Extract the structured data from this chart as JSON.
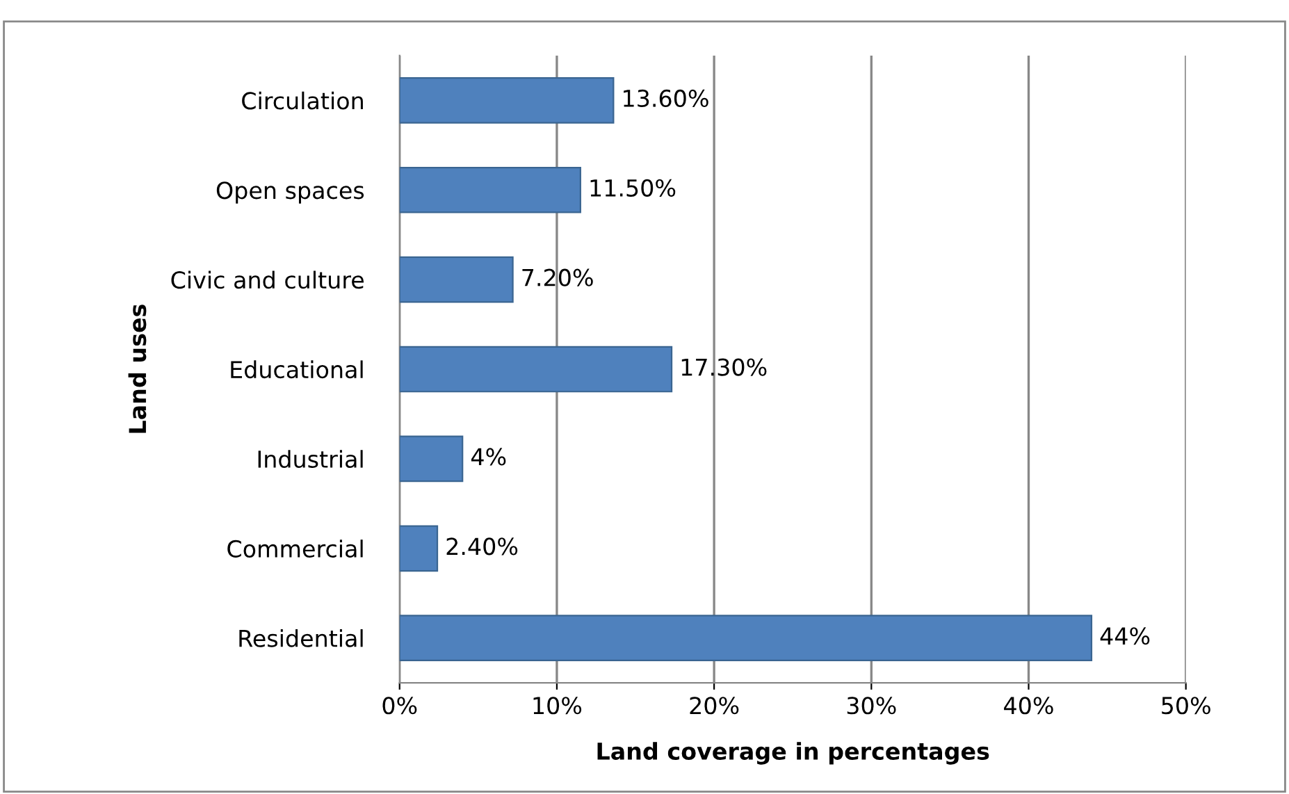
{
  "chart_data": {
    "type": "bar",
    "orientation": "horizontal",
    "xlabel": "Land coverage in percentages",
    "ylabel": "Land uses",
    "categories": [
      "Circulation",
      "Open spaces",
      "Civic and culture",
      "Educational",
      "Industrial",
      "Commercial",
      "Residential"
    ],
    "values": [
      13.6,
      11.5,
      7.2,
      17.3,
      4,
      2.4,
      44
    ],
    "value_labels": [
      "13.60%",
      "11.50%",
      "7.20%",
      "17.30%",
      "4%",
      "2.40%",
      "44%"
    ],
    "color": "#4f81bd",
    "xlim": [
      0,
      50
    ],
    "xticks": [
      {
        "value": 0,
        "label": "0%"
      },
      {
        "value": 10,
        "label": "10%"
      },
      {
        "value": 20,
        "label": "20%"
      },
      {
        "value": 30,
        "label": "30%"
      },
      {
        "value": 40,
        "label": "40%"
      },
      {
        "value": 50,
        "label": "50%"
      }
    ],
    "grid": "x"
  }
}
